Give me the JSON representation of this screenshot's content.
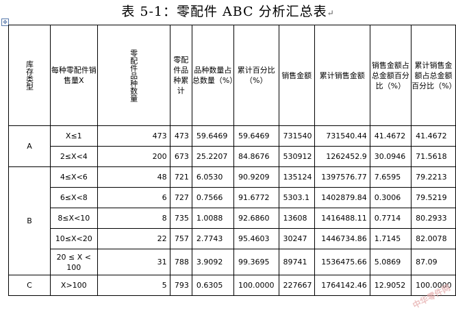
{
  "title": "表 5-1：零配件 ABC 分析汇总表",
  "headers": {
    "type": "库存类型",
    "qty": "每种零配件销售量X",
    "count": "零配件品种数量",
    "cum": "零配件品种累计",
    "pct": "品种数量占总数量（%）",
    "cumpct": "累计百分比（%）",
    "sales": "销售金额",
    "cumsales": "累计销售金额",
    "salespct": "销售金额占总金额百分比（%）",
    "cumsalespct": "累计销售金额占总金额百分比（%）"
  },
  "rows": [
    {
      "group": "A",
      "range": "X≤1",
      "count": "473",
      "cum": "473",
      "pct": "59.6469",
      "cumpct": "59.6469",
      "sales": "731540",
      "cumsales": "731540.44",
      "salespct": "41.4672",
      "cumsalespct": "41.4672"
    },
    {
      "group": "",
      "range": "2≤X<4",
      "count": "200",
      "cum": "673",
      "pct": "25.2207",
      "cumpct": "84.8676",
      "sales": "530912",
      "cumsales": "1262452.9",
      "salespct": "30.0946",
      "cumsalespct": "71.5618"
    },
    {
      "group": "",
      "range": "4≤X<6",
      "count": "48",
      "cum": "721",
      "pct": "6.0530",
      "cumpct": "90.9209",
      "sales": "135124",
      "cumsales": "1397576.77",
      "salespct": "7.6595",
      "cumsalespct": "79.2213"
    },
    {
      "group": "",
      "range": "6≤X<8",
      "count": "6",
      "cum": "727",
      "pct": "0.7566",
      "cumpct": "91.6772",
      "sales": "5303.1",
      "cumsales": "1402879.84",
      "salespct": "0.3006",
      "cumsalespct": "79.5219"
    },
    {
      "group": "B",
      "range": "8≤X<10",
      "count": "8",
      "cum": "735",
      "pct": "1.0088",
      "cumpct": "92.6860",
      "sales": "13608",
      "cumsales": "1416488.11",
      "salespct": "0.7714",
      "cumsalespct": "80.2933"
    },
    {
      "group": "",
      "range": "10≤X<20",
      "count": "22",
      "cum": "757",
      "pct": "2.7743",
      "cumpct": "95.4603",
      "sales": "30247",
      "cumsales": "1446734.86",
      "salespct": "1.7145",
      "cumsalespct": "82.0078"
    },
    {
      "group": "",
      "range": "20 ≤ X < 100",
      "count": "31",
      "cum": "788",
      "pct": "3.9092",
      "cumpct": "99.3695",
      "sales": "89741",
      "cumsales": "1536475.66",
      "salespct": "5.0869",
      "cumsalespct": "87.09"
    },
    {
      "group": "C",
      "range": "X>100",
      "count": "5",
      "cum": "793",
      "pct": "0.6305",
      "cumpct": "100.0000",
      "sales": "227667",
      "cumsales": "1764142.46",
      "salespct": "12.9052",
      "cumsalespct": "100.0000"
    }
  ],
  "watermark": "中华零件网"
}
